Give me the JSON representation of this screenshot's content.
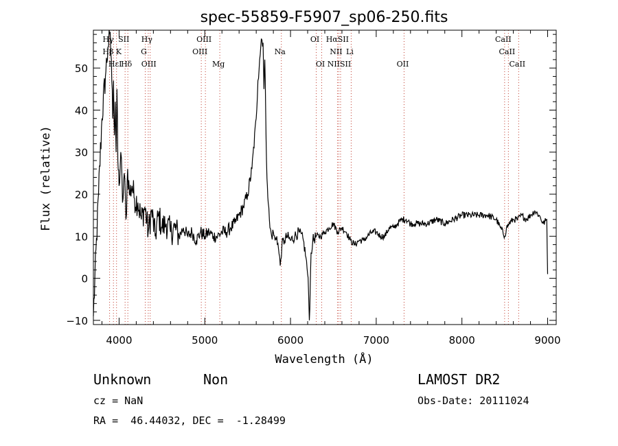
{
  "chart_data": {
    "type": "line",
    "title": "spec-55859-F5907_sp06-250.fits",
    "xlabel": "Wavelength (Å)",
    "ylabel": "Flux (relative)",
    "xlim": [
      3700,
      9100
    ],
    "ylim": [
      -11,
      59
    ],
    "xticks": [
      4000,
      5000,
      6000,
      7000,
      8000,
      9000
    ],
    "yticks": [
      -10,
      0,
      10,
      20,
      30,
      40,
      50
    ],
    "grid": false,
    "series": [
      {
        "x": [
          3700,
          3760,
          3800,
          3840,
          3870,
          3890,
          3910,
          3925,
          3935,
          3945,
          3955,
          3965,
          3975,
          3985,
          4000,
          4020,
          4040,
          4060,
          4080,
          4100,
          4120,
          4150,
          4180,
          4220,
          4260,
          4300,
          4340,
          4380,
          4420,
          4460,
          4500,
          4550,
          4600,
          4650,
          4700,
          4750,
          4800,
          4850,
          4900,
          4950,
          5000,
          5050,
          5100,
          5150,
          5200,
          5250,
          5300,
          5350,
          5400,
          5450,
          5500,
          5550,
          5600,
          5620,
          5640,
          5660,
          5680,
          5690,
          5700,
          5710,
          5720,
          5730,
          5740,
          5760,
          5780,
          5800,
          5820,
          5840,
          5860,
          5880,
          5900,
          5930,
          5960,
          6000,
          6050,
          6100,
          6150,
          6180,
          6200,
          6210,
          6220,
          6230,
          6240,
          6260,
          6300,
          6350,
          6400,
          6450,
          6500,
          6550,
          6600,
          6650,
          6700,
          6750,
          6800,
          6850,
          6900,
          6950,
          7000,
          7050,
          7100,
          7150,
          7200,
          7250,
          7300,
          7350,
          7400,
          7450,
          7500,
          7600,
          7700,
          7800,
          7900,
          8000,
          8100,
          8200,
          8300,
          8400,
          8450,
          8500,
          8520,
          8550,
          8600,
          8650,
          8700,
          8750,
          8800,
          8850,
          8900,
          8950,
          8990,
          9000
        ],
        "y": [
          -9,
          20,
          38,
          48,
          55,
          58,
          52,
          38,
          47,
          34,
          42,
          30,
          45,
          28,
          22,
          30,
          18,
          25,
          14,
          26,
          20,
          22,
          19,
          18,
          14,
          17,
          11,
          16,
          10,
          15,
          12,
          13,
          11,
          12,
          10,
          12,
          10,
          11,
          9,
          11,
          10,
          11,
          10,
          10,
          11,
          11,
          12,
          13,
          15,
          17,
          20,
          26,
          38,
          47,
          52,
          57,
          56,
          45,
          52,
          40,
          28,
          22,
          18,
          12,
          10,
          11,
          9,
          10,
          7,
          3,
          8,
          9,
          10,
          9,
          10,
          11,
          9,
          5,
          1,
          -3,
          -10,
          -2,
          6,
          9,
          10,
          10,
          11,
          12,
          13,
          11,
          12,
          11,
          9,
          8,
          9,
          9,
          10,
          11,
          11,
          10,
          10,
          12,
          12,
          13,
          14,
          14,
          13,
          13,
          13,
          13,
          14,
          13,
          14,
          15,
          15,
          15,
          15,
          14,
          12,
          10,
          12,
          13,
          14,
          14,
          15,
          14,
          15,
          16,
          15,
          13,
          14,
          1
        ]
      }
    ],
    "spectral_lines": [
      {
        "label": "Hγ",
        "x": 3889,
        "row": 0
      },
      {
        "label": "SII",
        "x": 4070,
        "row": 0
      },
      {
        "label": "Hγ",
        "x": 4340,
        "row": 0
      },
      {
        "label": "OIII",
        "x": 5007,
        "row": 0
      },
      {
        "label": "OI",
        "x": 6300,
        "row": 0
      },
      {
        "label": "HαSII",
        "x": 6563,
        "row": 0
      },
      {
        "label": "CaII",
        "x": 8498,
        "row": 0
      },
      {
        "label": "Hβ K",
        "x": 3934,
        "row": 1
      },
      {
        "label": "G",
        "x": 4305,
        "row": 1
      },
      {
        "label": "OIII",
        "x": 4959,
        "row": 1
      },
      {
        "label": "Na",
        "x": 5893,
        "row": 1
      },
      {
        "label": "NII",
        "x": 6548,
        "row": 1
      },
      {
        "label": "Li",
        "x": 6708,
        "row": 1
      },
      {
        "label": "CaII",
        "x": 8542,
        "row": 1
      },
      {
        "label": "HεI",
        "x": 3970,
        "row": 2
      },
      {
        "label": "Hδ",
        "x": 4102,
        "row": 2
      },
      {
        "label": "OIII",
        "x": 4363,
        "row": 2
      },
      {
        "label": "Mg",
        "x": 5175,
        "row": 2
      },
      {
        "label": "OI",
        "x": 6364,
        "row": 2
      },
      {
        "label": "NIISII",
        "x": 6584,
        "row": 2
      },
      {
        "label": "OII",
        "x": 7325,
        "row": 2
      },
      {
        "label": "CaII",
        "x": 8662,
        "row": 2
      }
    ]
  },
  "footer": {
    "class_text": "Unknown",
    "subclass_text": "Non",
    "survey_text": "LAMOST DR2",
    "cz_text": "cz = NaN",
    "obs_date_text": "Obs-Date: 20111024",
    "coords_text": "RA =  46.44032, DEC =  -1.28499"
  }
}
